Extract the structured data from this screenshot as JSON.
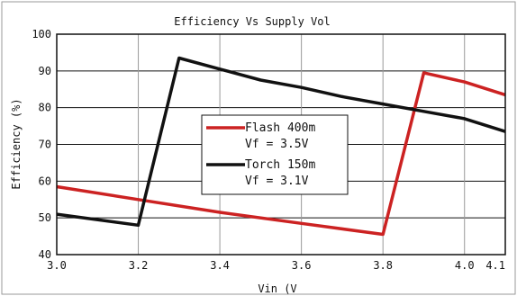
{
  "chart_data": {
    "type": "line",
    "title": "Efficiency Vs Supply Vol",
    "xlabel": "Vin (V",
    "ylabel": "Efficiency (%)",
    "xlim": [
      3.0,
      4.1
    ],
    "ylim": [
      40,
      100
    ],
    "x_ticks": [
      3.0,
      3.2,
      3.4,
      3.6,
      3.8,
      4.0,
      4.1
    ],
    "x_tick_labels": [
      "3.0",
      "3.2",
      "3.4",
      "3.6",
      "3.8",
      "4.0",
      "4.1"
    ],
    "y_ticks": [
      40,
      50,
      60,
      70,
      80,
      90,
      100
    ],
    "y_tick_labels": [
      "40",
      "50",
      "60",
      "70",
      "80",
      "90",
      "100"
    ],
    "grid": true,
    "legend_position": "center",
    "series": [
      {
        "name": "Flash 400m",
        "sub_label": "Vf = 3.5V",
        "color": "#cc2222",
        "points": [
          [
            3.0,
            58.5
          ],
          [
            3.2,
            55
          ],
          [
            3.4,
            51.5
          ],
          [
            3.6,
            48.5
          ],
          [
            3.8,
            45.5
          ],
          [
            3.9,
            89.5
          ],
          [
            4.0,
            87
          ],
          [
            4.1,
            83.5
          ]
        ]
      },
      {
        "name": "Torch 150m",
        "sub_label": "Vf = 3.1V",
        "color": "#111111",
        "points": [
          [
            3.0,
            51
          ],
          [
            3.2,
            48
          ],
          [
            3.3,
            93.5
          ],
          [
            3.4,
            90.5
          ],
          [
            3.5,
            87.5
          ],
          [
            3.6,
            85.5
          ],
          [
            3.7,
            83
          ],
          [
            3.8,
            81
          ],
          [
            3.9,
            79
          ],
          [
            4.0,
            77
          ],
          [
            4.1,
            73.5
          ]
        ]
      }
    ]
  }
}
